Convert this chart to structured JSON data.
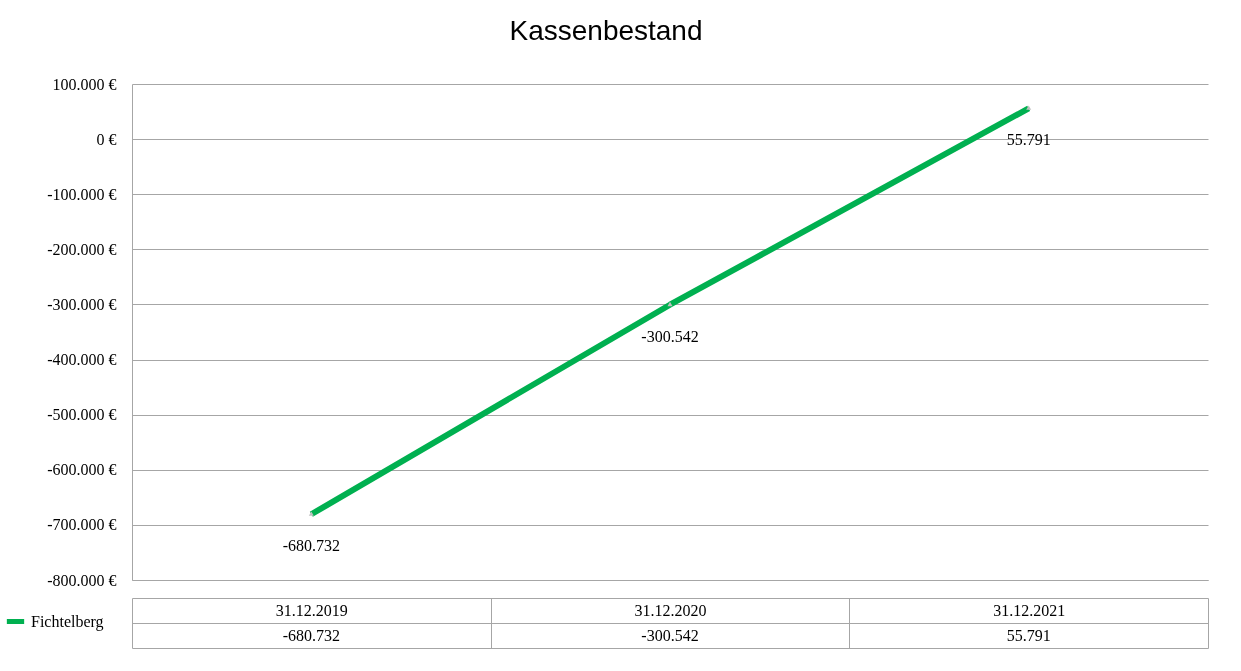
{
  "chart_data": {
    "type": "line",
    "title": "Kassenbestand",
    "categories": [
      "31.12.2019",
      "31.12.2020",
      "31.12.2021"
    ],
    "series": [
      {
        "name": "Fichtelberg",
        "color": "#00b050",
        "values": [
          -680732,
          -300542,
          55791
        ],
        "value_labels": [
          "-680.732",
          "-300.542",
          "55.791"
        ]
      }
    ],
    "ylim": [
      -800000,
      100000
    ],
    "yticks": [
      {
        "value": -800000,
        "label": "-800.000 €"
      },
      {
        "value": -700000,
        "label": "-700.000 €"
      },
      {
        "value": -600000,
        "label": "-600.000 €"
      },
      {
        "value": -500000,
        "label": "-500.000 €"
      },
      {
        "value": -400000,
        "label": "-400.000 €"
      },
      {
        "value": -300000,
        "label": "-300.000 €"
      },
      {
        "value": -200000,
        "label": "-200.000 €"
      },
      {
        "value": -100000,
        "label": "-100.000 €"
      },
      {
        "value": 0,
        "label": "0 €"
      },
      {
        "value": 100000,
        "label": "100.000 €"
      }
    ],
    "grid": "y",
    "legend": "bottom left",
    "marker": "triangle",
    "line_style": "solid"
  }
}
